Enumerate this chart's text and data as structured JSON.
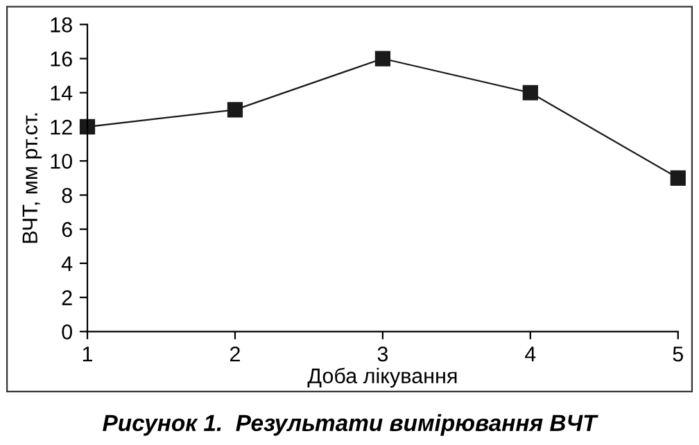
{
  "chart_data": {
    "type": "line",
    "xlabel": "Доба лікування",
    "ylabel": "ВЧТ, мм рт.ст.",
    "x": [
      1,
      2,
      3,
      4,
      5
    ],
    "series": [
      {
        "color": "#1a1a1a",
        "values": [
          12,
          13,
          16,
          14,
          9
        ]
      }
    ],
    "xlim": [
      1,
      5
    ],
    "xticks": [
      1,
      2,
      3,
      4,
      5
    ],
    "ylim": [
      0,
      18
    ],
    "yticks": [
      0,
      2,
      4,
      6,
      8,
      10,
      12,
      14,
      16,
      18
    ],
    "marker": "square",
    "line_style": "solid",
    "annotations": [
      "Рисунок 1.  Результати вимірювання ВЧТ"
    ]
  }
}
